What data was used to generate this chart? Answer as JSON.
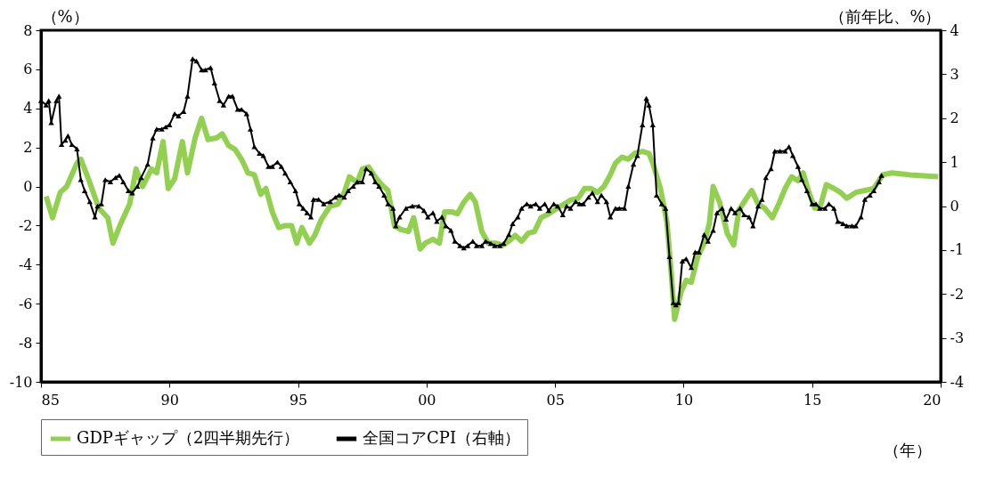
{
  "chart_data": {
    "type": "line",
    "xlabel": "（年）",
    "ylabel": "（%）",
    "y2label": "（前年比、%）",
    "xlim": [
      1985,
      2020
    ],
    "xticks": [
      {
        "value": 1985,
        "label": "85"
      },
      {
        "value": 1990,
        "label": "90"
      },
      {
        "value": 1995,
        "label": "95"
      },
      {
        "value": 2000,
        "label": "00"
      },
      {
        "value": 2005,
        "label": "05"
      },
      {
        "value": 2010,
        "label": "10"
      },
      {
        "value": 2015,
        "label": "15"
      },
      {
        "value": 2020,
        "label": "20"
      }
    ],
    "ylim": [
      -10,
      8
    ],
    "yticks": [
      -10,
      -8,
      -6,
      -4,
      -2,
      0,
      2,
      4,
      6,
      8
    ],
    "y2lim": [
      -4,
      4
    ],
    "y2ticks": [
      -4,
      -3,
      -2,
      -1,
      0,
      1,
      2,
      3,
      4
    ],
    "grid": false,
    "legend": "bottom",
    "series": [
      {
        "name": "GDPギャップ（2四半期先行）",
        "color": "#92d050",
        "marker": "none",
        "x": [
          1985.2,
          1985.45,
          1985.75,
          1986.0,
          1986.4,
          1986.55,
          1986.9,
          1987.25,
          1987.6,
          1987.8,
          1988.1,
          1988.45,
          1988.7,
          1988.95,
          1989.3,
          1989.5,
          1989.75,
          1989.95,
          1990.2,
          1990.5,
          1990.7,
          1991.0,
          1991.25,
          1991.5,
          1991.85,
          1992.05,
          1992.3,
          1992.55,
          1992.8,
          1993.05,
          1993.3,
          1993.55,
          1993.75,
          1994.0,
          1994.25,
          1994.5,
          1994.75,
          1994.95,
          1995.15,
          1995.45,
          1995.65,
          1995.9,
          1996.25,
          1996.55,
          1996.8,
          1997.0,
          1997.3,
          1997.5,
          1997.75,
          1998.0,
          1998.25,
          1998.5,
          1998.75,
          1999.0,
          1999.3,
          1999.5,
          1999.75,
          1999.95,
          2000.25,
          2000.5,
          2000.7,
          2001.0,
          2001.2,
          2001.45,
          2001.7,
          2001.9,
          2002.15,
          2002.4,
          2002.7,
          2002.95,
          2003.2,
          2003.45,
          2003.7,
          2003.95,
          2004.2,
          2004.45,
          2004.75,
          2005.1,
          2005.35,
          2005.6,
          2005.9,
          2006.15,
          2006.4,
          2006.65,
          2006.9,
          2007.15,
          2007.35,
          2007.6,
          2007.85,
          2008.1,
          2008.4,
          2008.65,
          2008.8,
          2009.1,
          2009.35,
          2009.5,
          2009.65,
          2009.9,
          2010.1,
          2010.3,
          2010.55,
          2010.8,
          2011.0,
          2011.15,
          2011.4,
          2011.7,
          2011.95,
          2012.15,
          2012.4,
          2012.65,
          2012.9,
          2013.15,
          2013.45,
          2013.7,
          2013.95,
          2014.2,
          2014.45,
          2014.65,
          2014.85,
          2015.1,
          2015.3,
          2015.55,
          2015.85,
          2016.1,
          2016.35,
          2016.7,
          2017.05,
          2017.4,
          2017.75,
          2018.1,
          2018.8,
          2019.9
        ],
        "values": [
          -0.5,
          -1.6,
          -0.3,
          0.0,
          1.2,
          1.4,
          0.2,
          -1.1,
          -1.6,
          -2.9,
          -1.9,
          -0.9,
          0.9,
          0.0,
          0.9,
          0.7,
          2.3,
          -0.1,
          0.4,
          2.3,
          0.7,
          2.5,
          3.5,
          2.4,
          2.5,
          2.7,
          2.1,
          1.9,
          1.4,
          0.7,
          0.6,
          -0.4,
          -0.1,
          -1.3,
          -2.1,
          -2.0,
          -2.0,
          -2.9,
          -2.1,
          -2.9,
          -2.5,
          -1.7,
          -1.0,
          -0.9,
          -0.3,
          0.5,
          0.2,
          0.9,
          1.0,
          0.5,
          0.1,
          -0.2,
          -2.0,
          -2.2,
          -2.3,
          -1.6,
          -3.2,
          -2.9,
          -2.7,
          -2.9,
          -1.3,
          -1.3,
          -1.4,
          -0.8,
          -0.4,
          -0.8,
          -2.3,
          -2.9,
          -2.9,
          -3.0,
          -2.8,
          -2.5,
          -2.8,
          -2.4,
          -2.3,
          -1.6,
          -1.4,
          -1.1,
          -0.9,
          -0.7,
          -0.6,
          -0.1,
          -0.1,
          -0.3,
          0.0,
          0.6,
          1.2,
          1.5,
          1.4,
          1.7,
          1.8,
          1.7,
          1.2,
          -0.1,
          -1.8,
          -4.1,
          -6.8,
          -5.4,
          -4.8,
          -4.9,
          -3.6,
          -2.9,
          -1.9,
          0.0,
          -0.8,
          -2.4,
          -3.0,
          -1.2,
          -0.7,
          -0.2,
          -0.9,
          -1.1,
          -1.6,
          -0.9,
          -0.1,
          0.5,
          0.3,
          0.7,
          -0.2,
          -1.1,
          -1.1,
          0.1,
          -0.1,
          -0.3,
          -0.6,
          -0.3,
          -0.2,
          -0.1,
          0.6,
          0.7,
          0.6,
          0.5
        ]
      },
      {
        "name": "全国コアCPI（右軸）",
        "color": "#000000",
        "axis": "y2",
        "marker": "triangle",
        "x": [
          1985.0,
          1985.2,
          1985.3,
          1985.4,
          1985.6,
          1985.7,
          1985.8,
          1985.95,
          1986.05,
          1986.2,
          1986.4,
          1986.55,
          1986.7,
          1986.9,
          1987.1,
          1987.2,
          1987.35,
          1987.5,
          1987.7,
          1987.9,
          1988.05,
          1988.2,
          1988.4,
          1988.55,
          1988.75,
          1988.9,
          1989.15,
          1989.35,
          1989.5,
          1989.7,
          1989.85,
          1990.0,
          1990.2,
          1990.35,
          1990.55,
          1990.7,
          1990.9,
          1991.05,
          1991.25,
          1991.4,
          1991.6,
          1991.75,
          1991.95,
          1992.1,
          1992.3,
          1992.45,
          1992.65,
          1992.8,
          1993.0,
          1993.15,
          1993.3,
          1993.5,
          1993.65,
          1993.85,
          1994.0,
          1994.2,
          1994.35,
          1994.5,
          1994.7,
          1994.9,
          1995.05,
          1995.2,
          1995.35,
          1995.5,
          1995.6,
          1995.8,
          1996.0,
          1996.25,
          1996.45,
          1996.6,
          1996.8,
          1996.95,
          1997.15,
          1997.3,
          1997.5,
          1997.65,
          1997.85,
          1998.0,
          1998.15,
          1998.35,
          1998.5,
          1998.7,
          1998.8,
          1998.95,
          1999.2,
          1999.45,
          1999.7,
          1999.9,
          2000.05,
          2000.25,
          2000.4,
          2000.6,
          2000.75,
          2000.95,
          2001.1,
          2001.3,
          2001.45,
          2001.6,
          2001.8,
          2001.95,
          2002.15,
          2002.3,
          2002.5,
          2002.65,
          2002.85,
          2003.0,
          2003.2,
          2003.35,
          2003.55,
          2003.7,
          2003.9,
          2004.05,
          2004.25,
          2004.4,
          2004.6,
          2004.75,
          2004.95,
          2005.1,
          2005.3,
          2005.45,
          2005.6,
          2005.8,
          2005.95,
          2006.1,
          2006.3,
          2006.45,
          2006.65,
          2006.8,
          2007.0,
          2007.15,
          2007.35,
          2007.5,
          2007.7,
          2007.85,
          2008.05,
          2008.2,
          2008.4,
          2008.55,
          2008.65,
          2008.8,
          2008.95,
          2009.15,
          2009.3,
          2009.45,
          2009.6,
          2009.7,
          2009.8,
          2009.95,
          2010.1,
          2010.3,
          2010.45,
          2010.6,
          2010.8,
          2010.95,
          2011.15,
          2011.3,
          2011.5,
          2011.65,
          2011.85,
          2012.0,
          2012.2,
          2012.35,
          2012.55,
          2012.7,
          2012.9,
          2013.05,
          2013.2,
          2013.4,
          2013.55,
          2013.75,
          2013.95,
          2014.1,
          2014.25,
          2014.45,
          2014.6,
          2014.8,
          2015.0,
          2015.15,
          2015.3,
          2015.5,
          2015.65,
          2015.85,
          2016.0,
          2016.2,
          2016.35,
          2016.55,
          2016.7,
          2016.9,
          2017.05,
          2017.25,
          2017.4,
          2017.6,
          2017.7
        ],
        "values": [
          2.4,
          2.3,
          2.4,
          1.9,
          2.4,
          2.5,
          1.4,
          1.5,
          1.6,
          1.4,
          1.3,
          0.6,
          0.35,
          0.1,
          -0.25,
          0.0,
          0.05,
          0.6,
          0.55,
          0.65,
          0.7,
          0.55,
          0.35,
          0.3,
          0.45,
          0.65,
          0.95,
          1.55,
          1.75,
          1.75,
          1.8,
          1.85,
          2.1,
          2.05,
          2.15,
          2.5,
          3.35,
          3.3,
          3.1,
          3.1,
          3.15,
          2.8,
          2.4,
          2.3,
          2.5,
          2.5,
          2.2,
          2.2,
          2.1,
          1.75,
          1.35,
          1.2,
          1.15,
          0.9,
          0.9,
          1.0,
          0.9,
          0.75,
          0.55,
          0.35,
          0.05,
          -0.05,
          -0.15,
          -0.25,
          0.15,
          0.15,
          0.05,
          0.1,
          0.2,
          0.25,
          0.2,
          0.35,
          0.45,
          0.55,
          0.55,
          0.85,
          0.75,
          0.55,
          0.45,
          0.25,
          0.05,
          -0.05,
          -0.45,
          -0.25,
          -0.05,
          0.0,
          0.0,
          -0.1,
          -0.25,
          -0.15,
          -0.35,
          -0.25,
          -0.45,
          -0.55,
          -0.8,
          -0.9,
          -0.95,
          -0.9,
          -0.8,
          -0.9,
          -0.9,
          -0.8,
          -0.85,
          -0.9,
          -0.9,
          -0.85,
          -0.65,
          -0.4,
          -0.25,
          -0.05,
          0.05,
          0.0,
          0.05,
          -0.05,
          0.05,
          -0.1,
          0.05,
          0.0,
          -0.2,
          0.0,
          -0.05,
          0.1,
          0.05,
          0.05,
          0.2,
          0.3,
          0.1,
          0.25,
          0.1,
          -0.25,
          -0.05,
          -0.05,
          -0.05,
          0.45,
          0.95,
          1.15,
          1.85,
          2.45,
          2.3,
          1.85,
          0.25,
          0.05,
          -0.05,
          -1.15,
          -2.2,
          -2.25,
          -2.2,
          -1.25,
          -1.2,
          -1.4,
          -1.05,
          -1.05,
          -0.65,
          -0.8,
          -0.55,
          -0.15,
          -0.05,
          -0.3,
          -0.05,
          -0.15,
          -0.05,
          -0.2,
          -0.25,
          -0.45,
          0.0,
          0.15,
          0.65,
          0.85,
          1.25,
          1.25,
          1.25,
          1.35,
          1.15,
          0.9,
          0.6,
          0.35,
          0.05,
          0.05,
          -0.05,
          -0.05,
          0.05,
          -0.05,
          -0.35,
          -0.4,
          -0.45,
          -0.45,
          -0.45,
          -0.25,
          0.15,
          0.25,
          0.35,
          0.55,
          0.7
        ]
      }
    ]
  }
}
